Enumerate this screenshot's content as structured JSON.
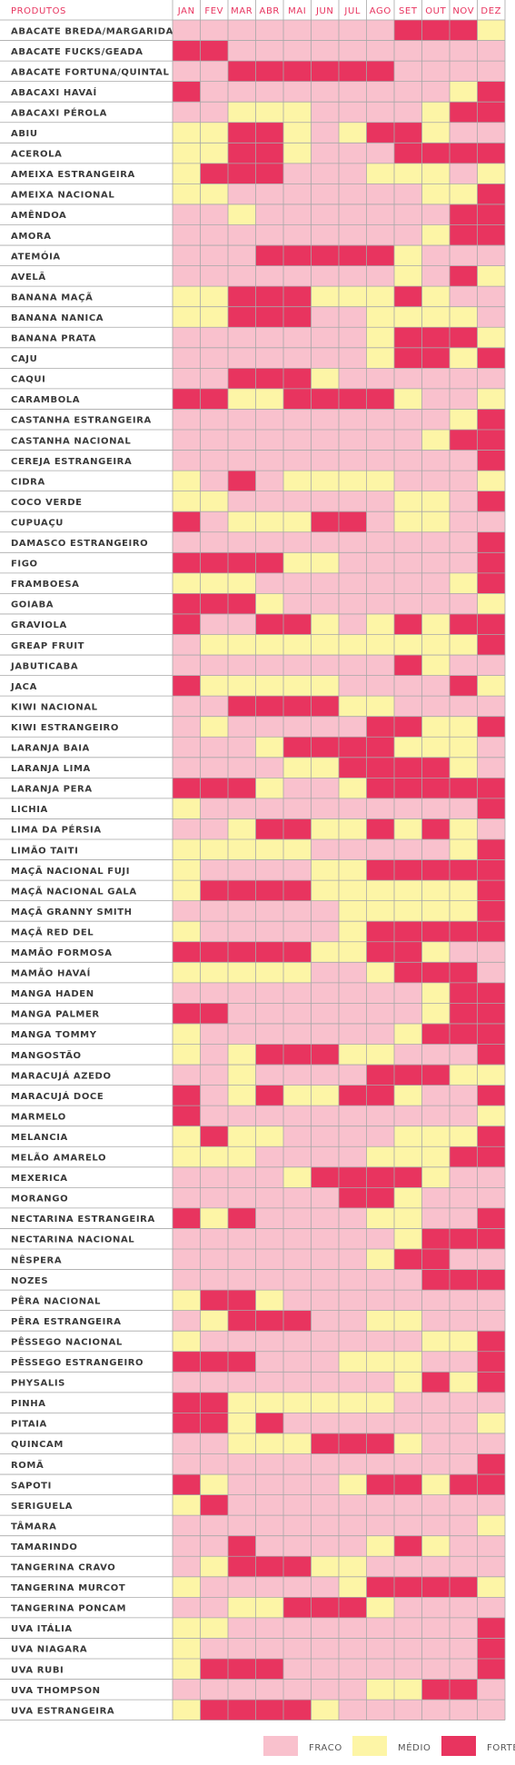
{
  "chart_data": {
    "type": "heatmap",
    "corner_label": "PRODUTOS",
    "months": [
      "JAN",
      "FEV",
      "MAR",
      "ABR",
      "MAI",
      "JUN",
      "JUL",
      "AGO",
      "SET",
      "OUT",
      "NOV",
      "DEZ"
    ],
    "level_colors": {
      "0": "#f9c1cd",
      "1": "#fdf5a6",
      "2": "#e8345f"
    },
    "legend": [
      {
        "label": "FRACO",
        "level": 0
      },
      {
        "label": "MÉDIO",
        "level": 1
      },
      {
        "label": "FORTE",
        "level": 2
      }
    ],
    "rows": [
      {
        "name": "ABACATE BREDA/MARGARIDA",
        "levels": [
          0,
          0,
          0,
          0,
          0,
          0,
          0,
          0,
          2,
          2,
          2,
          1
        ]
      },
      {
        "name": "ABACATE FUCKS/GEADA",
        "levels": [
          2,
          2,
          0,
          0,
          0,
          0,
          0,
          0,
          0,
          0,
          0,
          0
        ]
      },
      {
        "name": "ABACATE FORTUNA/QUINTAL",
        "levels": [
          0,
          0,
          2,
          2,
          2,
          2,
          2,
          2,
          0,
          0,
          0,
          0
        ]
      },
      {
        "name": "ABACAXI HAVAÍ",
        "levels": [
          2,
          0,
          0,
          0,
          0,
          0,
          0,
          0,
          0,
          0,
          1,
          2
        ]
      },
      {
        "name": "ABACAXI PÉROLA",
        "levels": [
          0,
          0,
          1,
          1,
          1,
          0,
          0,
          0,
          0,
          1,
          2,
          2
        ]
      },
      {
        "name": "ABIU",
        "levels": [
          1,
          1,
          2,
          2,
          1,
          0,
          1,
          2,
          2,
          1,
          0,
          0
        ]
      },
      {
        "name": "ACEROLA",
        "levels": [
          1,
          1,
          2,
          2,
          1,
          0,
          0,
          0,
          2,
          2,
          2,
          2
        ]
      },
      {
        "name": "AMEIXA ESTRANGEIRA",
        "levels": [
          1,
          2,
          2,
          2,
          0,
          0,
          0,
          1,
          1,
          1,
          0,
          1
        ]
      },
      {
        "name": "AMEIXA NACIONAL",
        "levels": [
          1,
          1,
          0,
          0,
          0,
          0,
          0,
          0,
          0,
          1,
          1,
          2
        ]
      },
      {
        "name": "AMÊNDOA",
        "levels": [
          0,
          0,
          1,
          0,
          0,
          0,
          0,
          0,
          0,
          0,
          2,
          2
        ]
      },
      {
        "name": "AMORA",
        "levels": [
          0,
          0,
          0,
          0,
          0,
          0,
          0,
          0,
          0,
          1,
          2,
          2
        ]
      },
      {
        "name": "ATEMÓIA",
        "levels": [
          0,
          0,
          0,
          2,
          2,
          2,
          2,
          2,
          1,
          0,
          0,
          0
        ]
      },
      {
        "name": "AVELÃ",
        "levels": [
          0,
          0,
          0,
          0,
          0,
          0,
          0,
          0,
          1,
          0,
          2,
          1
        ]
      },
      {
        "name": "BANANA MAÇÃ",
        "levels": [
          1,
          1,
          2,
          2,
          2,
          1,
          1,
          1,
          2,
          1,
          0,
          0
        ]
      },
      {
        "name": "BANANA NANICA",
        "levels": [
          1,
          1,
          2,
          2,
          2,
          0,
          0,
          1,
          1,
          1,
          1,
          0
        ]
      },
      {
        "name": "BANANA PRATA",
        "levels": [
          0,
          0,
          0,
          0,
          0,
          0,
          0,
          1,
          2,
          2,
          2,
          1
        ]
      },
      {
        "name": "CAJU",
        "levels": [
          0,
          0,
          0,
          0,
          0,
          0,
          0,
          1,
          2,
          2,
          1,
          2
        ]
      },
      {
        "name": "CAQUI",
        "levels": [
          0,
          0,
          2,
          2,
          2,
          1,
          0,
          0,
          0,
          0,
          0,
          0
        ]
      },
      {
        "name": "CARAMBOLA",
        "levels": [
          2,
          2,
          1,
          1,
          2,
          2,
          2,
          2,
          1,
          0,
          0,
          1
        ]
      },
      {
        "name": "CASTANHA ESTRANGEIRA",
        "levels": [
          0,
          0,
          0,
          0,
          0,
          0,
          0,
          0,
          0,
          0,
          1,
          2
        ]
      },
      {
        "name": "CASTANHA NACIONAL",
        "levels": [
          0,
          0,
          0,
          0,
          0,
          0,
          0,
          0,
          0,
          1,
          2,
          2
        ]
      },
      {
        "name": "CEREJA ESTRANGEIRA",
        "levels": [
          0,
          0,
          0,
          0,
          0,
          0,
          0,
          0,
          0,
          0,
          0,
          2
        ]
      },
      {
        "name": "CIDRA",
        "levels": [
          1,
          0,
          2,
          0,
          1,
          1,
          1,
          1,
          0,
          0,
          0,
          1
        ]
      },
      {
        "name": "COCO VERDE",
        "levels": [
          1,
          1,
          0,
          0,
          0,
          0,
          0,
          0,
          1,
          1,
          0,
          2
        ]
      },
      {
        "name": "CUPUAÇU",
        "levels": [
          2,
          0,
          1,
          1,
          1,
          2,
          2,
          0,
          1,
          1,
          0,
          0
        ]
      },
      {
        "name": "DAMASCO ESTRANGEIRO",
        "levels": [
          0,
          0,
          0,
          0,
          0,
          0,
          0,
          0,
          0,
          0,
          0,
          2
        ]
      },
      {
        "name": "FIGO",
        "levels": [
          2,
          2,
          2,
          2,
          1,
          1,
          0,
          0,
          0,
          0,
          0,
          2
        ]
      },
      {
        "name": "FRAMBOESA",
        "levels": [
          1,
          1,
          1,
          0,
          0,
          0,
          0,
          0,
          0,
          0,
          1,
          2
        ]
      },
      {
        "name": "GOIABA",
        "levels": [
          2,
          2,
          2,
          1,
          0,
          0,
          0,
          0,
          0,
          0,
          0,
          1
        ]
      },
      {
        "name": "GRAVIOLA",
        "levels": [
          2,
          0,
          0,
          2,
          2,
          1,
          0,
          1,
          2,
          1,
          2,
          2
        ]
      },
      {
        "name": "GREAP FRUIT",
        "levels": [
          0,
          1,
          1,
          1,
          1,
          1,
          1,
          1,
          1,
          1,
          1,
          2
        ]
      },
      {
        "name": "JABUTICABA",
        "levels": [
          0,
          0,
          0,
          0,
          0,
          0,
          0,
          0,
          2,
          1,
          0,
          0
        ]
      },
      {
        "name": "JACA",
        "levels": [
          2,
          1,
          1,
          1,
          1,
          1,
          0,
          0,
          0,
          0,
          2,
          1
        ]
      },
      {
        "name": "KIWI NACIONAL",
        "levels": [
          0,
          0,
          2,
          2,
          2,
          2,
          1,
          1,
          0,
          0,
          0,
          0
        ]
      },
      {
        "name": "KIWI ESTRANGEIRO",
        "levels": [
          0,
          1,
          0,
          0,
          0,
          0,
          0,
          2,
          2,
          1,
          1,
          2
        ]
      },
      {
        "name": "LARANJA BAIA",
        "levels": [
          0,
          0,
          0,
          1,
          2,
          2,
          2,
          2,
          1,
          1,
          1,
          0
        ]
      },
      {
        "name": "LARANJA LIMA",
        "levels": [
          0,
          0,
          0,
          0,
          1,
          1,
          2,
          2,
          2,
          2,
          1,
          0
        ]
      },
      {
        "name": "LARANJA PERA",
        "levels": [
          2,
          2,
          2,
          1,
          0,
          0,
          1,
          2,
          2,
          2,
          2,
          2
        ]
      },
      {
        "name": "LICHIA",
        "levels": [
          1,
          0,
          0,
          0,
          0,
          0,
          0,
          0,
          0,
          0,
          0,
          2
        ]
      },
      {
        "name": "LIMA DA PÉRSIA",
        "levels": [
          0,
          0,
          1,
          2,
          2,
          1,
          1,
          2,
          1,
          2,
          1,
          0
        ]
      },
      {
        "name": "LIMÃO TAITI",
        "levels": [
          1,
          1,
          1,
          1,
          1,
          0,
          0,
          0,
          0,
          0,
          1,
          2
        ]
      },
      {
        "name": "MAÇÃ NACIONAL FUJI",
        "levels": [
          1,
          0,
          0,
          0,
          0,
          1,
          1,
          2,
          2,
          2,
          2,
          2
        ]
      },
      {
        "name": "MAÇÃ NACIONAL GALA",
        "levels": [
          1,
          2,
          2,
          2,
          2,
          1,
          1,
          1,
          1,
          1,
          1,
          2
        ]
      },
      {
        "name": "MAÇÃ GRANNY SMITH",
        "levels": [
          0,
          0,
          0,
          0,
          0,
          0,
          1,
          1,
          1,
          1,
          1,
          2
        ]
      },
      {
        "name": "MAÇÃ RED DEL",
        "levels": [
          1,
          0,
          0,
          0,
          0,
          0,
          1,
          2,
          2,
          2,
          2,
          2
        ]
      },
      {
        "name": "MAMÃO FORMOSA",
        "levels": [
          2,
          2,
          2,
          2,
          2,
          1,
          1,
          2,
          2,
          1,
          0,
          0
        ]
      },
      {
        "name": "MAMÃO HAVAÍ",
        "levels": [
          1,
          1,
          1,
          1,
          1,
          0,
          0,
          1,
          2,
          2,
          2,
          0
        ]
      },
      {
        "name": "MANGA HADEN",
        "levels": [
          0,
          0,
          0,
          0,
          0,
          0,
          0,
          0,
          0,
          1,
          2,
          2
        ]
      },
      {
        "name": "MANGA PALMER",
        "levels": [
          2,
          2,
          0,
          0,
          0,
          0,
          0,
          0,
          0,
          1,
          2,
          2
        ]
      },
      {
        "name": "MANGA TOMMY",
        "levels": [
          1,
          0,
          0,
          0,
          0,
          0,
          0,
          0,
          1,
          2,
          2,
          2
        ]
      },
      {
        "name": "MANGOSTÃO",
        "levels": [
          1,
          0,
          1,
          2,
          2,
          2,
          1,
          1,
          0,
          0,
          0,
          2
        ]
      },
      {
        "name": "MARACUJÁ AZEDO",
        "levels": [
          0,
          0,
          1,
          0,
          0,
          0,
          0,
          2,
          2,
          2,
          1,
          1
        ]
      },
      {
        "name": "MARACUJÁ DOCE",
        "levels": [
          2,
          0,
          1,
          2,
          1,
          1,
          2,
          2,
          1,
          0,
          0,
          2
        ]
      },
      {
        "name": "MARMELO",
        "levels": [
          2,
          0,
          0,
          0,
          0,
          0,
          0,
          0,
          0,
          0,
          0,
          1
        ]
      },
      {
        "name": "MELANCIA",
        "levels": [
          1,
          2,
          1,
          1,
          0,
          0,
          0,
          0,
          1,
          1,
          1,
          2
        ]
      },
      {
        "name": "MELÃO AMARELO",
        "levels": [
          1,
          1,
          1,
          0,
          0,
          0,
          0,
          1,
          1,
          1,
          2,
          2
        ]
      },
      {
        "name": "MEXERICA",
        "levels": [
          0,
          0,
          0,
          0,
          1,
          2,
          2,
          2,
          2,
          1,
          0,
          0
        ]
      },
      {
        "name": "MORANGO",
        "levels": [
          0,
          0,
          0,
          0,
          0,
          0,
          2,
          2,
          1,
          0,
          0,
          0
        ]
      },
      {
        "name": "NECTARINA ESTRANGEIRA",
        "levels": [
          2,
          1,
          2,
          0,
          0,
          0,
          0,
          1,
          1,
          0,
          0,
          2
        ]
      },
      {
        "name": "NECTARINA NACIONAL",
        "levels": [
          0,
          0,
          0,
          0,
          0,
          0,
          0,
          0,
          1,
          2,
          2,
          2
        ]
      },
      {
        "name": "NÊSPERA",
        "levels": [
          0,
          0,
          0,
          0,
          0,
          0,
          0,
          1,
          2,
          2,
          0,
          0
        ]
      },
      {
        "name": "NOZES",
        "levels": [
          0,
          0,
          0,
          0,
          0,
          0,
          0,
          0,
          0,
          2,
          2,
          2
        ]
      },
      {
        "name": "PÊRA NACIONAL",
        "levels": [
          1,
          2,
          2,
          1,
          0,
          0,
          0,
          0,
          0,
          0,
          0,
          0
        ]
      },
      {
        "name": "PÊRA ESTRANGEIRA",
        "levels": [
          0,
          1,
          2,
          2,
          2,
          0,
          0,
          1,
          1,
          0,
          0,
          0
        ]
      },
      {
        "name": "PÊSSEGO NACIONAL",
        "levels": [
          1,
          0,
          0,
          0,
          0,
          0,
          0,
          0,
          0,
          1,
          1,
          2
        ]
      },
      {
        "name": "PÊSSEGO ESTRANGEIRO",
        "levels": [
          2,
          2,
          2,
          0,
          0,
          0,
          1,
          1,
          1,
          0,
          0,
          2
        ]
      },
      {
        "name": "PHYSALIS",
        "levels": [
          0,
          0,
          0,
          0,
          0,
          0,
          0,
          0,
          1,
          2,
          1,
          2
        ]
      },
      {
        "name": "PINHA",
        "levels": [
          2,
          2,
          1,
          1,
          1,
          1,
          1,
          1,
          0,
          0,
          0,
          0
        ]
      },
      {
        "name": "PITAIA",
        "levels": [
          2,
          2,
          1,
          2,
          0,
          0,
          0,
          0,
          0,
          0,
          0,
          1
        ]
      },
      {
        "name": "QUINCAM",
        "levels": [
          0,
          0,
          1,
          1,
          1,
          2,
          2,
          2,
          1,
          0,
          0,
          0
        ]
      },
      {
        "name": "ROMÃ",
        "levels": [
          0,
          0,
          0,
          0,
          0,
          0,
          0,
          0,
          0,
          0,
          0,
          2
        ]
      },
      {
        "name": "SAPOTI",
        "levels": [
          2,
          1,
          0,
          0,
          0,
          0,
          1,
          2,
          2,
          1,
          2,
          2
        ]
      },
      {
        "name": "SERIGUELA",
        "levels": [
          1,
          2,
          0,
          0,
          0,
          0,
          0,
          0,
          0,
          0,
          0,
          0
        ]
      },
      {
        "name": "TÂMARA",
        "levels": [
          0,
          0,
          0,
          0,
          0,
          0,
          0,
          0,
          0,
          0,
          0,
          1
        ]
      },
      {
        "name": "TAMARINDO",
        "levels": [
          0,
          0,
          2,
          0,
          0,
          0,
          0,
          1,
          2,
          1,
          0,
          0
        ]
      },
      {
        "name": "TANGERINA CRAVO",
        "levels": [
          0,
          1,
          2,
          2,
          2,
          1,
          1,
          0,
          0,
          0,
          0,
          0
        ]
      },
      {
        "name": "TANGERINA MURCOT",
        "levels": [
          1,
          0,
          0,
          0,
          0,
          0,
          1,
          2,
          2,
          2,
          2,
          1
        ]
      },
      {
        "name": "TANGERINA PONCAM",
        "levels": [
          0,
          0,
          1,
          1,
          2,
          2,
          2,
          1,
          0,
          0,
          0,
          0
        ]
      },
      {
        "name": "UVA ITÁLIA",
        "levels": [
          1,
          1,
          0,
          0,
          0,
          0,
          0,
          0,
          0,
          0,
          0,
          2
        ]
      },
      {
        "name": "UVA NIAGARA",
        "levels": [
          1,
          0,
          0,
          0,
          0,
          0,
          0,
          0,
          0,
          0,
          0,
          2
        ]
      },
      {
        "name": "UVA RUBI",
        "levels": [
          1,
          2,
          2,
          2,
          0,
          0,
          0,
          0,
          0,
          0,
          0,
          2
        ]
      },
      {
        "name": "UVA THOMPSON",
        "levels": [
          0,
          0,
          0,
          0,
          0,
          0,
          0,
          1,
          1,
          2,
          2,
          0
        ]
      },
      {
        "name": "UVA ESTRANGEIRA",
        "levels": [
          1,
          2,
          2,
          2,
          2,
          1,
          0,
          0,
          0,
          0,
          0,
          0
        ]
      }
    ]
  }
}
